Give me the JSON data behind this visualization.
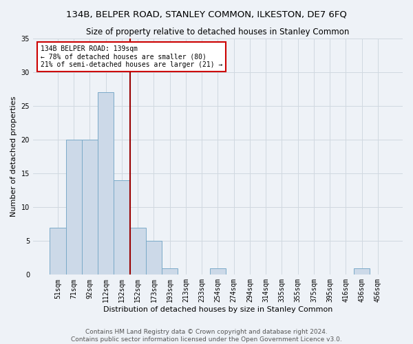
{
  "title1": "134B, BELPER ROAD, STANLEY COMMON, ILKESTON, DE7 6FQ",
  "title2": "Size of property relative to detached houses in Stanley Common",
  "xlabel": "Distribution of detached houses by size in Stanley Common",
  "ylabel": "Number of detached properties",
  "footer1": "Contains HM Land Registry data © Crown copyright and database right 2024.",
  "footer2": "Contains public sector information licensed under the Open Government Licence v3.0.",
  "bin_labels": [
    "51sqm",
    "71sqm",
    "92sqm",
    "112sqm",
    "132sqm",
    "152sqm",
    "173sqm",
    "193sqm",
    "213sqm",
    "233sqm",
    "254sqm",
    "274sqm",
    "294sqm",
    "314sqm",
    "335sqm",
    "355sqm",
    "375sqm",
    "395sqm",
    "416sqm",
    "436sqm",
    "456sqm"
  ],
  "values": [
    7,
    20,
    20,
    27,
    14,
    7,
    5,
    1,
    0,
    0,
    1,
    0,
    0,
    0,
    0,
    0,
    0,
    0,
    0,
    1,
    0
  ],
  "bar_color": "#ccd9e8",
  "bar_edge_color": "#7aaac8",
  "vline_color": "#990000",
  "annotation_line1": "134B BELPER ROAD: 139sqm",
  "annotation_line2": "← 78% of detached houses are smaller (80)",
  "annotation_line3": "21% of semi-detached houses are larger (21) →",
  "annotation_box_color": "#ffffff",
  "annotation_box_edge": "#cc0000",
  "ylim": [
    0,
    35
  ],
  "yticks": [
    0,
    5,
    10,
    15,
    20,
    25,
    30,
    35
  ],
  "grid_color": "#d0d8e0",
  "background_color": "#eef2f7",
  "title1_fontsize": 9.5,
  "title2_fontsize": 8.5,
  "xlabel_fontsize": 8,
  "ylabel_fontsize": 8,
  "tick_fontsize": 7,
  "footer_fontsize": 6.5,
  "annotation_fontsize": 7
}
